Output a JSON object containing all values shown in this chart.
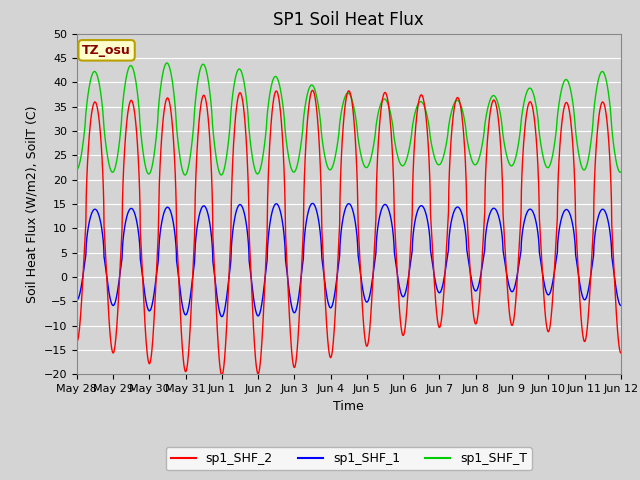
{
  "title": "SP1 Soil Heat Flux",
  "xlabel": "Time",
  "ylabel": "Soil Heat Flux (W/m2), SoilT (C)",
  "ylim": [
    -20,
    50
  ],
  "bg_color": "#d4d4d4",
  "grid_color": "#ffffff",
  "annotation_text": "TZ_osu",
  "annotation_bg": "#ffffcc",
  "annotation_border": "#b8a000",
  "legend_entries": [
    "sp1_SHF_2",
    "sp1_SHF_1",
    "sp1_SHF_T"
  ],
  "line_colors": [
    "#ff0000",
    "#0000ff",
    "#00cc00"
  ],
  "num_days": 15,
  "tick_labels": [
    "May 28",
    "May 29",
    "May 30",
    "May 31",
    "Jun 1",
    "Jun 2",
    "Jun 3",
    "Jun 4",
    "Jun 5",
    "Jun 6",
    "Jun 7",
    "Jun 8",
    "Jun 9",
    "Jun 10",
    "Jun 11",
    "Jun 12"
  ],
  "title_fontsize": 12,
  "label_fontsize": 9,
  "tick_fontsize": 8,
  "legend_fontsize": 9
}
